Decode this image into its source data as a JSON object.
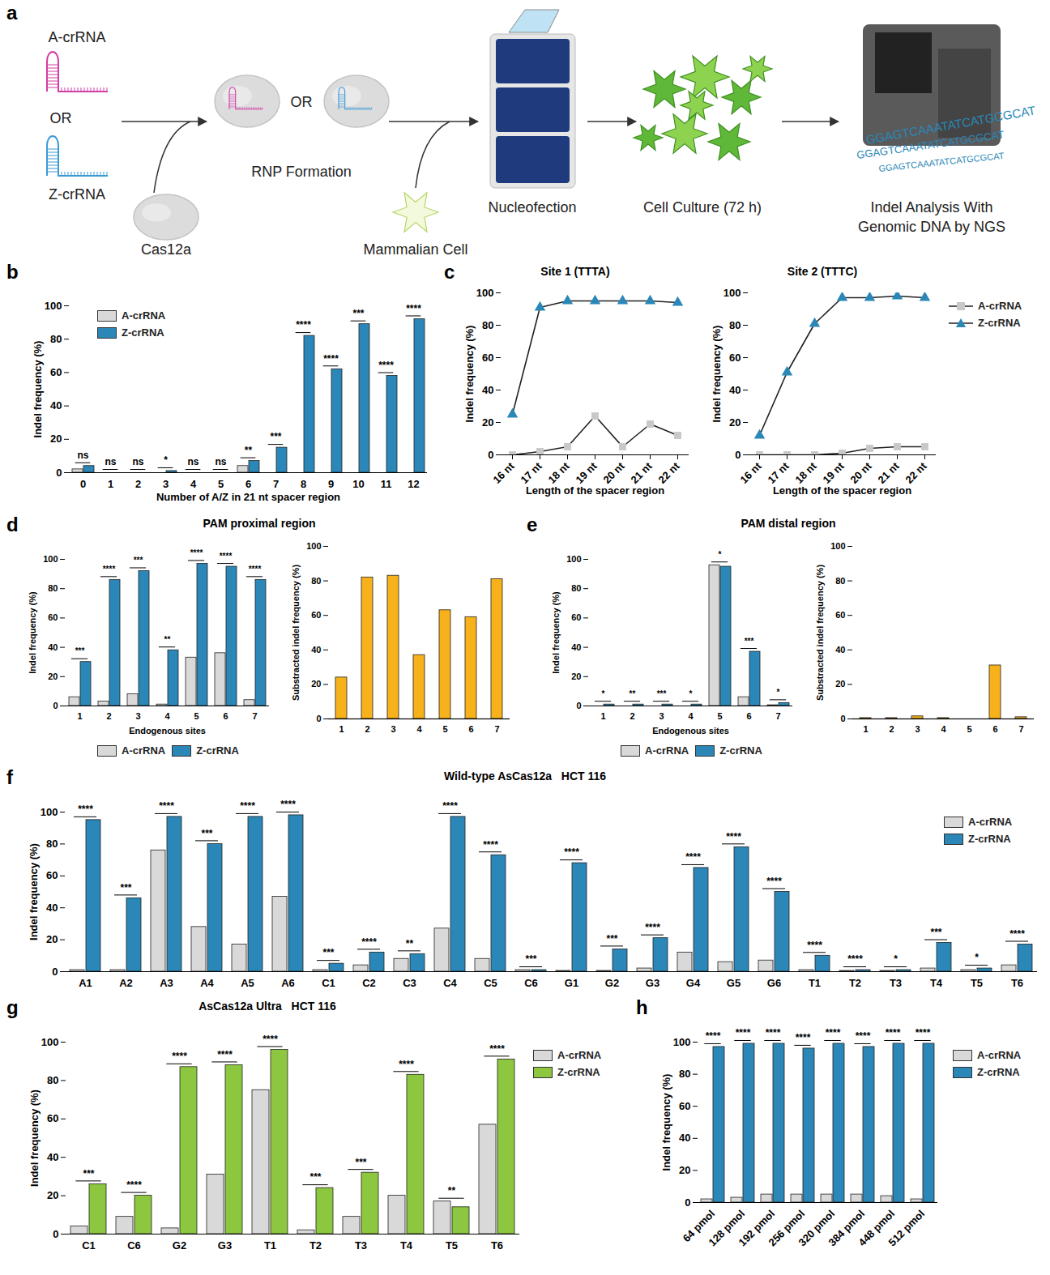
{
  "diagram": {
    "panel": "a",
    "a_crrna": "A-crRNA",
    "or_crrna": "OR",
    "z_crrna": "Z-crRNA",
    "cas12a": "Cas12a",
    "or_rnp": "OR",
    "rnp_formation": "RNP Formation",
    "mammalian_cell": "Mammalian Cell",
    "nucleofection": "Nucleofection",
    "cell_culture": "Cell Culture (72 h)",
    "indel_analysis": "Indel Analysis With Genomic DNA by NGS",
    "sequence": "GGAGTCAAATATCATGCGCAT"
  },
  "chart_data": [
    {
      "type": "bar",
      "panel": "b",
      "categories": [
        "0",
        "1",
        "2",
        "3",
        "4",
        "5",
        "6",
        "7",
        "8",
        "9",
        "10",
        "11",
        "12"
      ],
      "series": [
        {
          "name": "A-crRNA",
          "color": "#d9d9d9",
          "values": [
            2,
            0,
            0,
            0,
            0,
            0,
            4,
            0,
            0,
            0,
            0,
            0,
            0
          ]
        },
        {
          "name": "Z-crRNA",
          "color": "#2a87b8",
          "values": [
            4,
            0,
            0,
            1,
            0,
            0,
            7,
            15,
            82,
            62,
            89,
            58,
            92
          ]
        }
      ],
      "significance": [
        "ns",
        "ns",
        "ns",
        "*",
        "ns",
        "ns",
        "**",
        "***",
        "****",
        "****",
        "***",
        "****",
        "****"
      ],
      "x_label": "Number of A/Z in 21 nt spacer region",
      "y_label": "Indel frequency (%)",
      "ylim": [
        0,
        100
      ],
      "yticks": [
        0,
        20,
        40,
        60,
        80,
        100
      ],
      "legend": "top-left"
    },
    {
      "type": "line",
      "panel": "c",
      "title": "Site 1 (TTTA)",
      "categories": [
        "16 nt",
        "17 nt",
        "18 nt",
        "19 nt",
        "20 nt",
        "21 nt",
        "22 nt"
      ],
      "series": [
        {
          "name": "A-crRNA",
          "color": "#c8c8c8",
          "marker": "square",
          "values": [
            0,
            2,
            5,
            24,
            5,
            19,
            12
          ]
        },
        {
          "name": "Z-crRNA",
          "color": "#2a87b8",
          "marker": "triangle",
          "values": [
            25,
            91,
            95,
            95,
            95,
            95,
            94
          ]
        }
      ],
      "x_label": "Length of the spacer region",
      "y_label": "Indel frequency (%)",
      "ylim": [
        0,
        100
      ],
      "yticks": [
        0,
        20,
        40,
        60,
        80,
        100
      ]
    },
    {
      "type": "line",
      "title": "Site 2 (TTTC)",
      "categories": [
        "16 nt",
        "17 nt",
        "18 nt",
        "19 nt",
        "20 nt",
        "21 nt",
        "22 nt"
      ],
      "series": [
        {
          "name": "A-crRNA",
          "color": "#c8c8c8",
          "marker": "square",
          "values": [
            0,
            0,
            0,
            1,
            4,
            5,
            5
          ]
        },
        {
          "name": "Z-crRNA",
          "color": "#2a87b8",
          "marker": "triangle",
          "values": [
            12,
            51,
            81,
            97,
            97,
            98,
            97
          ]
        }
      ],
      "x_label": "Length of the spacer region",
      "y_label": "Indel frequency (%)",
      "ylim": [
        0,
        100
      ],
      "yticks": [
        0,
        20,
        40,
        60,
        80,
        100
      ],
      "legend": "right"
    },
    {
      "type": "bar",
      "panel": "d",
      "title": "PAM proximal region",
      "categories": [
        "1",
        "2",
        "3",
        "4",
        "5",
        "6",
        "7"
      ],
      "series": [
        {
          "name": "A-crRNA",
          "color": "#d9d9d9",
          "values": [
            6,
            3,
            8,
            1,
            33,
            36,
            4
          ]
        },
        {
          "name": "Z-crRNA",
          "color": "#2a87b8",
          "values": [
            30,
            86,
            92,
            38,
            97,
            95,
            86
          ]
        }
      ],
      "significance": [
        "***",
        "****",
        "***",
        "**",
        "****",
        "****",
        "****"
      ],
      "x_label": "Endogenous sites",
      "y_label": "Indel frequency (%)",
      "ylim": [
        0,
        100
      ],
      "yticks": [
        0,
        20,
        40,
        60,
        80,
        100
      ],
      "legend": "bottom"
    },
    {
      "type": "bar",
      "categories": [
        "1",
        "2",
        "3",
        "4",
        "5",
        "6",
        "7"
      ],
      "values": [
        24,
        82,
        83,
        37,
        63,
        59,
        81
      ],
      "color": "#f7b21b",
      "y_label": "Substracted indel frequency (%)",
      "ylim": [
        0,
        100
      ],
      "yticks": [
        0,
        20,
        40,
        60,
        80,
        100
      ]
    },
    {
      "type": "bar",
      "panel": "e",
      "title": "PAM distal region",
      "categories": [
        "1",
        "2",
        "3",
        "4",
        "5",
        "6",
        "7"
      ],
      "series": [
        {
          "name": "A-crRNA",
          "color": "#d9d9d9",
          "values": [
            0,
            0,
            0,
            0,
            96,
            6,
            0.5
          ]
        },
        {
          "name": "Z-crRNA",
          "color": "#2a87b8",
          "values": [
            1,
            1,
            1,
            1,
            95,
            37,
            2
          ]
        }
      ],
      "significance": [
        "*",
        "**",
        "***",
        "*",
        "*",
        "***",
        "*"
      ],
      "x_label": "Endogenous sites",
      "y_label": "Indel frequency (%)",
      "ylim": [
        0,
        100
      ],
      "yticks": [
        0,
        20,
        40,
        60,
        80,
        100
      ],
      "legend": "bottom"
    },
    {
      "type": "bar",
      "categories": [
        "1",
        "2",
        "3",
        "4",
        "5",
        "6",
        "7"
      ],
      "values": [
        0.5,
        0.5,
        1.5,
        0.5,
        0,
        31,
        1
      ],
      "color": "#f7b21b",
      "y_label": "Substracted indel frequency (%)",
      "ylim": [
        0,
        100
      ],
      "yticks": [
        0,
        20,
        40,
        60,
        80,
        100
      ]
    },
    {
      "type": "bar",
      "panel": "f",
      "title": "Wild-type AsCas12a   HCT 116",
      "categories": [
        "A1",
        "A2",
        "A3",
        "A4",
        "A5",
        "A6",
        "C1",
        "C2",
        "C3",
        "C4",
        "C5",
        "C6",
        "G1",
        "G2",
        "G3",
        "G4",
        "G5",
        "G6",
        "T1",
        "T2",
        "T3",
        "T4",
        "T5",
        "T6"
      ],
      "series": [
        {
          "name": "A-crRNA",
          "color": "#d9d9d9",
          "values": [
            1,
            1,
            76,
            28,
            17,
            47,
            1,
            4,
            8,
            27,
            8,
            1,
            0.5,
            0.5,
            2,
            12,
            6,
            7,
            1,
            0.5,
            0.5,
            2,
            1,
            4
          ]
        },
        {
          "name": "Z-crRNA",
          "color": "#2a87b8",
          "values": [
            95,
            46,
            97,
            80,
            97,
            98,
            5,
            12,
            11,
            97,
            73,
            1,
            68,
            14,
            21,
            65,
            78,
            50,
            10,
            1,
            1,
            18,
            2,
            17
          ]
        }
      ],
      "significance": [
        "****",
        "***",
        "****",
        "***",
        "****",
        "****",
        "***",
        "****",
        "**",
        "****",
        "****",
        "***",
        "****",
        "***",
        "****",
        "****",
        "****",
        "****",
        "****",
        "****",
        "*",
        "***",
        "*",
        "****"
      ],
      "y_label": "Indel frequency (%)",
      "ylim": [
        0,
        100
      ],
      "yticks": [
        0,
        20,
        40,
        60,
        80,
        100
      ],
      "legend": "top-right"
    },
    {
      "type": "bar",
      "panel": "g",
      "title": "AsCas12a Ultra   HCT 116",
      "categories": [
        "C1",
        "C6",
        "G2",
        "G3",
        "T1",
        "T2",
        "T3",
        "T4",
        "T5",
        "T6"
      ],
      "series": [
        {
          "name": "A-crRNA",
          "color": "#d9d9d9",
          "values": [
            4,
            9,
            3,
            31,
            75,
            2,
            9,
            20,
            17,
            57
          ]
        },
        {
          "name": "Z-crRNA",
          "color": "#8dc63f",
          "values": [
            26,
            20,
            87,
            88,
            96,
            24,
            32,
            83,
            14,
            91
          ]
        }
      ],
      "significance": [
        "***",
        "****",
        "****",
        "****",
        "****",
        "***",
        "***",
        "****",
        "**",
        "****"
      ],
      "y_label": "Indel frequency (%)",
      "ylim": [
        0,
        100
      ],
      "yticks": [
        0,
        20,
        40,
        60,
        80,
        100
      ],
      "legend": "right"
    },
    {
      "type": "bar",
      "panel": "h",
      "categories": [
        "64 pmol",
        "128 pmol",
        "192 pmol",
        "256 pmol",
        "320 pmol",
        "384 pmol",
        "448 pmol",
        "512 pmol"
      ],
      "series": [
        {
          "name": "A-crRNA",
          "color": "#d9d9d9",
          "values": [
            2,
            3,
            5,
            5,
            5,
            5,
            4,
            2
          ]
        },
        {
          "name": "Z-crRNA",
          "color": "#2a87b8",
          "values": [
            97,
            99,
            99,
            96,
            99,
            97,
            99,
            99
          ]
        }
      ],
      "significance": [
        "****",
        "****",
        "****",
        "****",
        "****",
        "****",
        "****",
        "****"
      ],
      "y_label": "Indel frequency (%)",
      "ylim": [
        0,
        100
      ],
      "yticks": [
        0,
        20,
        40,
        60,
        80,
        100
      ],
      "legend": "right"
    }
  ]
}
